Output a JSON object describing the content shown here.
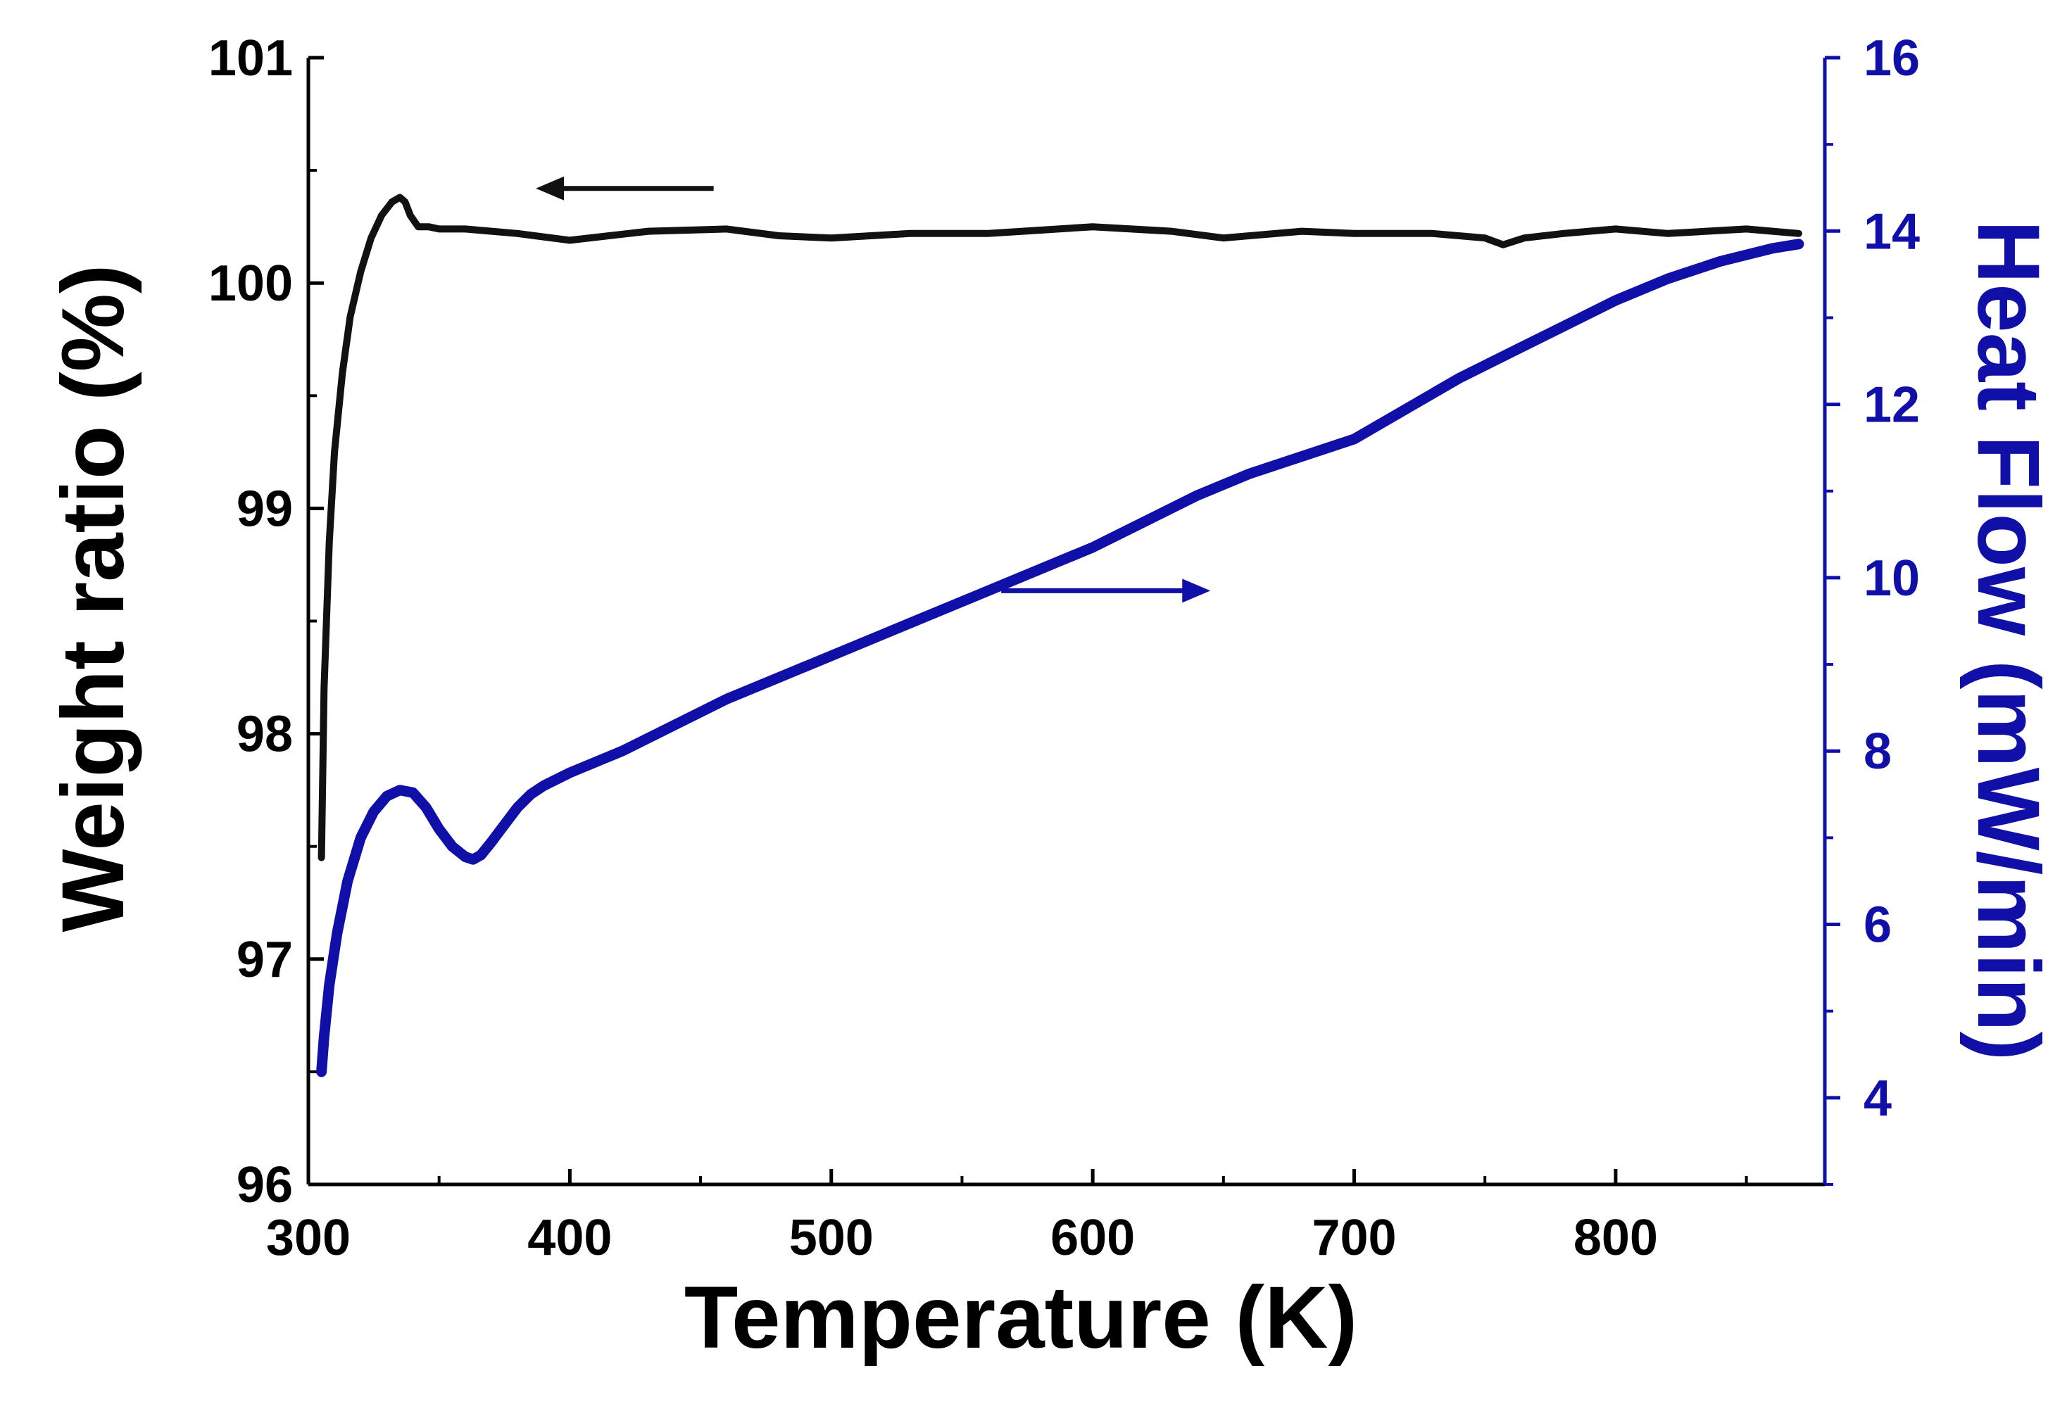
{
  "chart_data": {
    "type": "line",
    "xlabel": "Temperature (K)",
    "ylabel": "Weight ratio (%)",
    "y2label": "Heat Flow (mW/min)",
    "xlim": [
      300,
      880
    ],
    "ylim": [
      96,
      101
    ],
    "y2lim": [
      3,
      16
    ],
    "x_ticks": [
      "300",
      "400",
      "500",
      "600",
      "700",
      "800"
    ],
    "y_ticks": [
      "96",
      "97",
      "98",
      "99",
      "100",
      "101"
    ],
    "y2_ticks": [
      "4",
      "6",
      "8",
      "10",
      "12",
      "14",
      "16"
    ],
    "colors": {
      "weight": "#111111",
      "heat": "#1010a8",
      "axis": "#000000",
      "axis2": "#1010a8"
    },
    "series": [
      {
        "name": "Weight ratio",
        "axis": "left",
        "x": [
          305,
          306,
          308,
          310,
          313,
          316,
          320,
          324,
          328,
          332,
          335,
          337,
          339,
          342,
          346,
          350,
          360,
          380,
          400,
          430,
          460,
          480,
          500,
          530,
          560,
          600,
          630,
          650,
          680,
          700,
          730,
          750,
          757,
          765,
          780,
          800,
          820,
          850,
          870
        ],
        "values": [
          97.45,
          98.2,
          98.85,
          99.25,
          99.6,
          99.85,
          100.05,
          100.2,
          100.3,
          100.36,
          100.38,
          100.36,
          100.3,
          100.25,
          100.25,
          100.24,
          100.24,
          100.22,
          100.19,
          100.23,
          100.24,
          100.21,
          100.2,
          100.22,
          100.22,
          100.25,
          100.23,
          100.2,
          100.23,
          100.22,
          100.22,
          100.2,
          100.17,
          100.2,
          100.22,
          100.24,
          100.22,
          100.24,
          100.22
        ]
      },
      {
        "name": "Heat Flow",
        "axis": "right",
        "x": [
          305,
          306,
          308,
          311,
          315,
          320,
          325,
          330,
          335,
          340,
          345,
          350,
          355,
          360,
          363,
          366,
          370,
          375,
          380,
          385,
          390,
          400,
          420,
          440,
          460,
          480,
          500,
          520,
          540,
          560,
          580,
          600,
          620,
          640,
          660,
          680,
          700,
          720,
          740,
          760,
          780,
          800,
          820,
          840,
          860,
          870
        ],
        "values": [
          4.3,
          4.7,
          5.3,
          5.9,
          6.5,
          7.0,
          7.3,
          7.48,
          7.55,
          7.52,
          7.35,
          7.1,
          6.9,
          6.78,
          6.75,
          6.8,
          6.95,
          7.15,
          7.35,
          7.5,
          7.6,
          7.75,
          8.0,
          8.3,
          8.6,
          8.85,
          9.1,
          9.35,
          9.6,
          9.85,
          10.1,
          10.35,
          10.65,
          10.95,
          11.2,
          11.4,
          11.6,
          11.95,
          12.3,
          12.6,
          12.9,
          13.2,
          13.45,
          13.65,
          13.8,
          13.85
        ]
      }
    ],
    "annotations": [
      {
        "type": "arrow",
        "direction": "left",
        "points_to": "Weight ratio axis",
        "color": "#111111",
        "x_from": 455,
        "x_to": 387,
        "y": 100.42,
        "axis": "left"
      },
      {
        "type": "arrow",
        "direction": "right",
        "points_to": "Heat Flow axis",
        "color": "#1010a8",
        "x_from": 565,
        "x_to": 645,
        "y": 9.85,
        "axis": "right"
      }
    ]
  }
}
